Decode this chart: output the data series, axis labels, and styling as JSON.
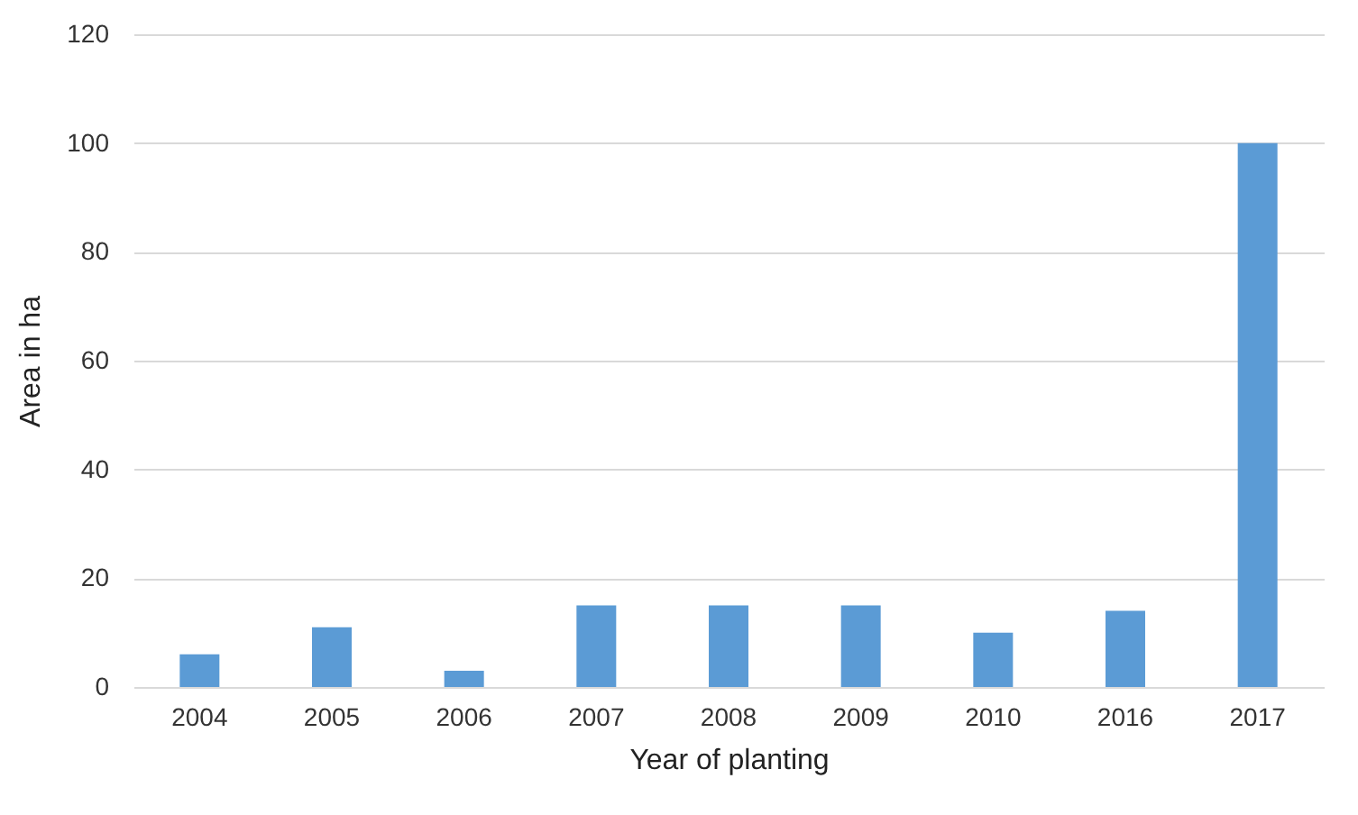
{
  "chart_data": {
    "type": "bar",
    "xlabel": "Year of planting",
    "ylabel": "Area in ha",
    "categories": [
      "2004",
      "2005",
      "2006",
      "2007",
      "2008",
      "2009",
      "2010",
      "2016",
      "2017"
    ],
    "values": [
      6,
      11,
      3,
      15,
      15,
      15,
      10,
      14,
      100
    ],
    "color": "#5b9bd5",
    "ylim": [
      0,
      120
    ],
    "yticks": [
      0,
      20,
      40,
      60,
      80,
      100,
      120
    ],
    "grid": "y"
  }
}
